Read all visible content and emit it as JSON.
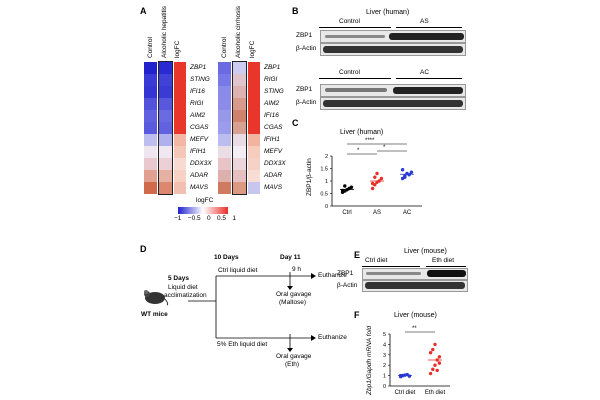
{
  "panels": {
    "A": "A",
    "B": "B",
    "C": "C",
    "D": "D",
    "E": "E",
    "F": "F"
  },
  "panel_a": {
    "heat1": {
      "col1": "Control",
      "col2": "Alcoholic hepatitis",
      "col3": "logFC",
      "genes": [
        "ZBP1",
        "STING",
        "IFI16",
        "RIGI",
        "AIM2",
        "CGAS",
        "MEFV",
        "IFIH1",
        "DDX3X",
        "ADAR",
        "MAVS"
      ],
      "ctrl_colors": [
        "#2222cc",
        "#3a3ad6",
        "#3535d4",
        "#5252dc",
        "#6060e0",
        "#5a5ade",
        "#bdbdef",
        "#f0e6f0",
        "#e9c8d0",
        "#e2a090",
        "#d06a4a"
      ],
      "ah_colors": [
        "#2a2ad2",
        "#4141d8",
        "#3a3ad5",
        "#5858de",
        "#6a6ae2",
        "#6262e0",
        "#b0b0ec",
        "#efe8f0",
        "#ecd0d6",
        "#e6b0a2",
        "#dc8870"
      ],
      "fc_colors": [
        "#e8362a",
        "#e8362a",
        "#e8362a",
        "#e8362a",
        "#e8362a",
        "#e8362a",
        "#f2b8a6",
        "#f4c8b6",
        "#f8dad0",
        "#f6d2c4",
        "#f2c0b0"
      ]
    },
    "heat2": {
      "col1": "Control",
      "col2": "Alcoholic cirrhosis",
      "col3": "logFC",
      "genes": [
        "ZBP1",
        "RIGI",
        "STING",
        "AIM2",
        "IFI16",
        "CGAS",
        "IFIH1",
        "MEFV",
        "DDX3X",
        "ADAR",
        "MAVS"
      ],
      "ctrl_colors": [
        "#6a6ae2",
        "#7878e6",
        "#8a8ae8",
        "#8c8ce8",
        "#9898ea",
        "#9c9cec",
        "#bcbcf0",
        "#eadde6",
        "#e8c4c8",
        "#ddb0ae",
        "#d07a62"
      ],
      "ac_colors": [
        "#ccccf2",
        "#e0c4cc",
        "#ddb2b0",
        "#d89a8c",
        "#d0826c",
        "#d8a090",
        "#eadce4",
        "#f2eef4",
        "#ecd6dc",
        "#e6c0c0",
        "#dc9880"
      ],
      "fc_colors": [
        "#e8362a",
        "#e8362a",
        "#e8362a",
        "#e8362a",
        "#e8362a",
        "#e8362a",
        "#f2b4a0",
        "#f6ccbc",
        "#f6d2c6",
        "#f8ddd4",
        "#c6c6ee"
      ]
    },
    "legend": {
      "title": "logFC",
      "ticks": [
        "−1",
        "−0.5",
        "0",
        "0.5",
        "1"
      ]
    }
  },
  "panel_b": {
    "title": "Liver (human)",
    "row1": {
      "groups": [
        "Control",
        "AS"
      ],
      "label_zbp1": "ZBP1",
      "label_actin": "β-Actin"
    },
    "row2": {
      "groups": [
        "Control",
        "AC"
      ],
      "label_zbp1": "ZBP1",
      "label_actin": "β-Actin"
    }
  },
  "panel_c": {
    "title": "Liver (human)",
    "ylabel": "ZBP1/β-actin",
    "sig": [
      "****",
      "*",
      "*"
    ]
  },
  "panel_d": {
    "mice": "WT mice",
    "step1_days": "5 Days",
    "step1_desc1": "Liquid diet",
    "step1_desc2": "acclimatization",
    "day10": "10 Days",
    "day11": "Day 11",
    "ctrl_diet": "Ctrl liquid diet",
    "eth_diet": "5% Eth liquid diet",
    "gavage_ctrl1": "Oral gavage",
    "gavage_ctrl2": "(Maltose)",
    "gavage_eth1": "Oral gavage",
    "gavage_eth2": "(Eth)",
    "euth1": "Euthanize",
    "euth2": "Euthanize",
    "hours": "9 h"
  },
  "panel_e": {
    "title": "Liver (mouse)",
    "groups": [
      "Ctrl diet",
      "Eth diet"
    ],
    "label_zbp1": "ZBP1",
    "label_actin": "β-Actin"
  },
  "panel_f": {
    "title": "Liver (mouse)",
    "ylabel": "Zbp1/Gapdh mRNA fold",
    "sig": "**"
  },
  "chart_data": [
    {
      "type": "scatter",
      "title": "Liver (human)",
      "ylabel": "ZBP1/β-actin",
      "categories": [
        "Ctrl",
        "AS",
        "AC"
      ],
      "ylim": [
        0,
        2.0
      ],
      "yticks": [
        0,
        0.5,
        1.0,
        1.5,
        2.0
      ],
      "series": [
        {
          "name": "Ctrl",
          "color": "#000000",
          "values": [
            0.55,
            0.6,
            0.65,
            0.7,
            0.75,
            0.62,
            0.8
          ]
        },
        {
          "name": "AS",
          "color": "#e8302a",
          "values": [
            0.7,
            0.85,
            0.95,
            1.0,
            1.1,
            0.9,
            1.15,
            1.3
          ]
        },
        {
          "name": "AC",
          "color": "#2a3ad6",
          "values": [
            1.1,
            1.2,
            1.3,
            1.25,
            1.35,
            1.45,
            1.15
          ]
        }
      ],
      "means": [
        0.66,
        1.0,
        1.27
      ]
    },
    {
      "type": "scatter",
      "title": "Liver (mouse)",
      "ylabel": "Zbp1/Gapdh mRNA fold",
      "categories": [
        "Ctrl diet",
        "Eth diet"
      ],
      "ylim": [
        0,
        5
      ],
      "yticks": [
        0,
        1,
        2,
        3,
        4,
        5
      ],
      "series": [
        {
          "name": "Ctrl diet",
          "color": "#2a3ad6",
          "values": [
            0.9,
            1.0,
            1.05,
            1.1,
            0.95,
            1.0,
            1.0
          ]
        },
        {
          "name": "Eth diet",
          "color": "#e8302a",
          "values": [
            1.2,
            1.6,
            2.0,
            2.5,
            2.8,
            3.2,
            3.5,
            4.0,
            1.5,
            2.2
          ]
        }
      ],
      "means": [
        1.0,
        2.5
      ]
    }
  ]
}
